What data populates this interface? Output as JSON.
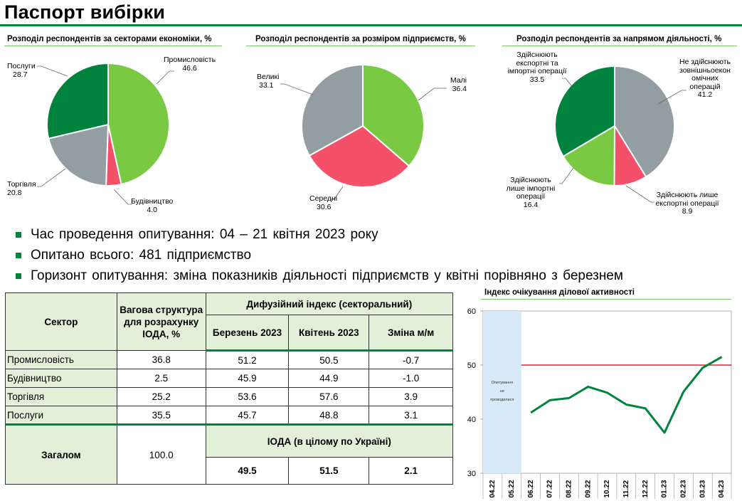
{
  "page": {
    "title": "Паспорт вибірки"
  },
  "pies": [
    {
      "title": "Розподіл респондентів за секторами економіки, %",
      "slices": [
        {
          "name": "Промисловість",
          "value": 46.6,
          "color": "#7ac943"
        },
        {
          "name": "Будівництво",
          "value": 4.0,
          "color": "#f4506a"
        },
        {
          "name": "Торгівля",
          "value": 20.8,
          "color": "#939ea3"
        },
        {
          "name": "Послуги",
          "value": 28.7,
          "color": "#00843d"
        }
      ],
      "labels": [
        {
          "text": "Промисловість",
          "value": "46.6"
        },
        {
          "text": "Будівництво",
          "value": "4.0"
        },
        {
          "text": "Торгівля",
          "value": "20.8"
        },
        {
          "text": "Послуги",
          "value": "28.7"
        }
      ]
    },
    {
      "title": "Розподіл респондентів за розміром підприємств, %",
      "slices": [
        {
          "name": "Малі",
          "value": 36.4,
          "color": "#7ac943"
        },
        {
          "name": "Середні",
          "value": 30.6,
          "color": "#f4506a"
        },
        {
          "name": "Великі",
          "value": 33.1,
          "color": "#939ea3"
        }
      ],
      "labels": [
        {
          "text": "Малі",
          "value": "36.4"
        },
        {
          "text": "Середні",
          "value": "30.6"
        },
        {
          "text": "Великі",
          "value": "33.1"
        }
      ]
    },
    {
      "title": "Розподіл респондентів за напрямом діяльності, %",
      "slices": [
        {
          "name": "Не здійснюють зовнішньоекономічних операцій",
          "value": 41.2,
          "color": "#939ea3"
        },
        {
          "name": "Здійснюють лише експортні операції",
          "value": 8.9,
          "color": "#f4506a"
        },
        {
          "name": "Здійснюють лише імпортні операції",
          "value": 16.4,
          "color": "#7ac943"
        },
        {
          "name": "Здійснюють експортні та імпортні операції",
          "value": 33.5,
          "color": "#00843d"
        }
      ],
      "labels": [
        {
          "text": "Не здійснюють\nзовнішньоекон\nомічних\nоперацій",
          "value": "41.2"
        },
        {
          "text": "Здійснюють лише\nекспортні операції",
          "value": "8.9"
        },
        {
          "text": "Здійснюють\nлише імпортні\nоперації",
          "value": "16.4"
        },
        {
          "text": "Здійснюють\nекспортні та\nімпортні операції",
          "value": "33.5"
        }
      ]
    }
  ],
  "bullets": [
    "Час проведення  опитування:  04 – 21 квітня 2023 року",
    "Опитано  всього: 481 підприємство",
    "Горизонт  опитування:  зміна показників  діяльності  підприємств  у квітні порівняно з березнем"
  ],
  "table": {
    "headers": {
      "sector": "Сектор",
      "weight": "Вагова структура для розрахунку ІОДА, %",
      "diffusion": "Дифузійний індекс (секторальний)",
      "march": "Березень 2023",
      "april": "Квітень 2023",
      "change": "Зміна м/м"
    },
    "rows": [
      {
        "sector": "Промисловість",
        "weight": "36.8",
        "march": "51.2",
        "april": "50.5",
        "change": "-0.7"
      },
      {
        "sector": "Будівництво",
        "weight": "2.5",
        "march": "45.9",
        "april": "44.9",
        "change": "-1.0"
      },
      {
        "sector": "Торгівля",
        "weight": "25.2",
        "march": "53.6",
        "april": "57.6",
        "change": "3.9"
      },
      {
        "sector": "Послуги",
        "weight": "35.5",
        "march": "45.7",
        "april": "48.8",
        "change": "3.1"
      }
    ],
    "total": {
      "label": "Загалом",
      "weight": "100.0",
      "ioda_label": "ІОДА (в цілому по Україні)",
      "march": "49.5",
      "april": "51.5",
      "change": "2.1"
    }
  },
  "chart_data": {
    "type": "line",
    "title": "Індекс очікування ділової активності",
    "categories": [
      "04.22",
      "05.22",
      "06.22",
      "07.22",
      "08.22",
      "09.22",
      "10.22",
      "11.22",
      "12.22",
      "01.23",
      "02.23",
      "03.23",
      "04.23"
    ],
    "values": [
      null,
      null,
      41.2,
      43.5,
      43.9,
      46.0,
      44.9,
      42.7,
      42.0,
      37.5,
      45.1,
      49.5,
      51.5
    ],
    "ylim": [
      30,
      60
    ],
    "yticks": [
      30,
      40,
      50,
      60
    ],
    "reference_line": 50,
    "no_survey_note": "Опитування не проводилися",
    "colors": {
      "line": "#00843d",
      "reference": "#d9262e",
      "no_survey": "#d6eaf8"
    }
  }
}
